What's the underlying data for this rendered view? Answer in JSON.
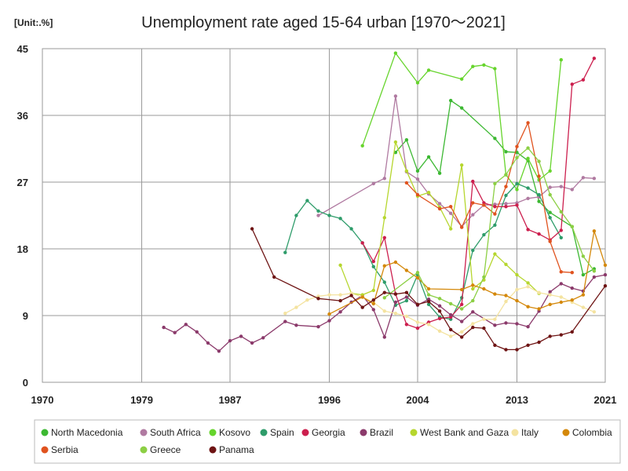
{
  "chart_data": {
    "type": "line",
    "title": "Unemployment rate aged 15-64 urban [1970〜2021]",
    "unit_label": "[Unit:.%]",
    "xlim": [
      1970,
      2021
    ],
    "ylim": [
      0,
      45
    ],
    "x_ticks": [
      1970,
      1979,
      1987,
      1996,
      2004,
      2013,
      2021
    ],
    "y_ticks": [
      0,
      9,
      18,
      27,
      36,
      45
    ],
    "grid": true,
    "legend_position": "bottom",
    "series": [
      {
        "name": "North Macedonia",
        "color": "#3cb832",
        "points": [
          [
            2002,
            31.0
          ],
          [
            2003,
            32.7
          ],
          [
            2004,
            28.5
          ],
          [
            2005,
            30.4
          ],
          [
            2006,
            28.2
          ],
          [
            2007,
            38.0
          ],
          [
            2008,
            37.0
          ],
          [
            2011,
            32.9
          ],
          [
            2012,
            31.1
          ],
          [
            2013,
            31.0
          ],
          [
            2014,
            29.9
          ],
          [
            2015,
            24.4
          ],
          [
            2016,
            22.9
          ],
          [
            2018,
            21.0
          ],
          [
            2019,
            14.5
          ],
          [
            2020,
            15.3
          ]
        ]
      },
      {
        "name": "South Africa",
        "color": "#b07aa1",
        "points": [
          [
            1995,
            22.5
          ],
          [
            2000,
            26.8
          ],
          [
            2001,
            27.5
          ],
          [
            2002,
            38.6
          ],
          [
            2003,
            28.4
          ],
          [
            2004,
            27.4
          ],
          [
            2005,
            25.4
          ],
          [
            2006,
            24.1
          ],
          [
            2007,
            22.8
          ],
          [
            2008,
            21.0
          ],
          [
            2009,
            22.6
          ],
          [
            2010,
            23.9
          ],
          [
            2011,
            24.0
          ],
          [
            2012,
            24.1
          ],
          [
            2013,
            24.2
          ],
          [
            2014,
            24.8
          ],
          [
            2015,
            25.0
          ],
          [
            2016,
            26.3
          ],
          [
            2017,
            26.4
          ],
          [
            2018,
            26.0
          ],
          [
            2019,
            27.6
          ],
          [
            2020,
            27.5
          ]
        ]
      },
      {
        "name": "Kosovo",
        "color": "#66d42c",
        "points": [
          [
            1999,
            31.9
          ],
          [
            2002,
            44.4
          ],
          [
            2004,
            40.4
          ],
          [
            2005,
            42.1
          ],
          [
            2008,
            40.9
          ],
          [
            2009,
            42.6
          ],
          [
            2010,
            42.8
          ],
          [
            2011,
            42.3
          ],
          [
            2012,
            28.0
          ],
          [
            2013,
            26.0
          ],
          [
            2014,
            30.2
          ],
          [
            2015,
            27.3
          ],
          [
            2016,
            28.5
          ],
          [
            2017,
            43.5
          ]
        ]
      },
      {
        "name": "Spain",
        "color": "#2e9c6a",
        "points": [
          [
            1992,
            17.5
          ],
          [
            1993,
            22.5
          ],
          [
            1994,
            24.5
          ],
          [
            1995,
            23.1
          ],
          [
            1996,
            22.5
          ],
          [
            1997,
            22.1
          ],
          [
            1998,
            20.7
          ],
          [
            1999,
            18.8
          ],
          [
            2000,
            15.6
          ],
          [
            2001,
            13.5
          ],
          [
            2002,
            10.4
          ],
          [
            2003,
            11.0
          ],
          [
            2004,
            14.5
          ],
          [
            2005,
            10.5
          ],
          [
            2006,
            8.8
          ],
          [
            2007,
            8.5
          ],
          [
            2008,
            11.4
          ],
          [
            2009,
            17.8
          ],
          [
            2010,
            19.9
          ],
          [
            2011,
            21.2
          ],
          [
            2012,
            25.2
          ],
          [
            2013,
            26.8
          ],
          [
            2014,
            26.2
          ],
          [
            2015,
            25.3
          ],
          [
            2016,
            22.2
          ],
          [
            2017,
            19.5
          ]
        ]
      },
      {
        "name": "Georgia",
        "color": "#cc1f4e",
        "points": [
          [
            1999,
            18.8
          ],
          [
            2000,
            16.3
          ],
          [
            2001,
            19.5
          ],
          [
            2002,
            11.9
          ],
          [
            2003,
            7.8
          ],
          [
            2004,
            7.3
          ],
          [
            2005,
            8.1
          ],
          [
            2006,
            8.6
          ],
          [
            2007,
            8.8
          ],
          [
            2008,
            10.5
          ],
          [
            2009,
            27.1
          ],
          [
            2010,
            24.2
          ],
          [
            2011,
            23.7
          ],
          [
            2012,
            23.7
          ],
          [
            2013,
            23.9
          ],
          [
            2014,
            20.6
          ],
          [
            2015,
            20.0
          ],
          [
            2016,
            19.2
          ],
          [
            2017,
            20.5
          ],
          [
            2018,
            40.2
          ],
          [
            2019,
            40.8
          ],
          [
            2020,
            43.7
          ]
        ]
      },
      {
        "name": "Brazil",
        "color": "#8b3a6b",
        "points": [
          [
            1981,
            7.4
          ],
          [
            1982,
            6.7
          ],
          [
            1983,
            7.8
          ],
          [
            1984,
            6.8
          ],
          [
            1985,
            5.3
          ],
          [
            1986,
            4.2
          ],
          [
            1987,
            5.6
          ],
          [
            1988,
            6.2
          ],
          [
            1989,
            5.3
          ],
          [
            1990,
            6.0
          ],
          [
            1992,
            8.2
          ],
          [
            1993,
            7.7
          ],
          [
            1995,
            7.5
          ],
          [
            1996,
            8.3
          ],
          [
            1997,
            9.5
          ],
          [
            1998,
            10.8
          ],
          [
            1999,
            11.7
          ],
          [
            2000,
            9.8
          ],
          [
            2001,
            6.1
          ],
          [
            2002,
            10.8
          ],
          [
            2003,
            11.5
          ],
          [
            2004,
            10.4
          ],
          [
            2005,
            11.2
          ],
          [
            2006,
            10.3
          ],
          [
            2007,
            9.1
          ],
          [
            2008,
            8.2
          ],
          [
            2009,
            9.5
          ],
          [
            2011,
            7.7
          ],
          [
            2012,
            8.0
          ],
          [
            2013,
            7.9
          ],
          [
            2014,
            7.5
          ],
          [
            2015,
            9.6
          ],
          [
            2016,
            12.2
          ],
          [
            2017,
            13.3
          ],
          [
            2018,
            12.7
          ],
          [
            2019,
            12.3
          ],
          [
            2020,
            14.2
          ],
          [
            2021,
            14.5
          ]
        ]
      },
      {
        "name": "West Bank and Gaza",
        "color": "#b6d62e",
        "points": [
          [
            1997,
            15.8
          ],
          [
            1998,
            12.0
          ],
          [
            1999,
            11.8
          ],
          [
            2000,
            12.4
          ],
          [
            2001,
            22.2
          ],
          [
            2002,
            32.4
          ],
          [
            2003,
            28.5
          ],
          [
            2004,
            25.1
          ],
          [
            2005,
            25.6
          ],
          [
            2006,
            23.6
          ],
          [
            2007,
            20.7
          ],
          [
            2008,
            29.3
          ],
          [
            2009,
            12.6
          ],
          [
            2010,
            13.8
          ],
          [
            2011,
            17.3
          ],
          [
            2012,
            15.9
          ],
          [
            2013,
            14.5
          ],
          [
            2014,
            13.4
          ],
          [
            2015,
            12.0
          ]
        ]
      },
      {
        "name": "Italy",
        "color": "#f4e3a0",
        "points": [
          [
            1992,
            9.3
          ],
          [
            1993,
            10.1
          ],
          [
            1994,
            11.1
          ],
          [
            1995,
            11.6
          ],
          [
            1996,
            11.8
          ],
          [
            1997,
            11.8
          ],
          [
            1998,
            12.0
          ],
          [
            1999,
            11.5
          ],
          [
            2000,
            10.8
          ],
          [
            2001,
            9.6
          ],
          [
            2002,
            9.3
          ],
          [
            2003,
            8.9
          ],
          [
            2004,
            8.1
          ],
          [
            2005,
            7.8
          ],
          [
            2006,
            6.9
          ],
          [
            2007,
            6.2
          ],
          [
            2008,
            6.8
          ],
          [
            2009,
            7.9
          ],
          [
            2010,
            8.5
          ],
          [
            2011,
            8.5
          ],
          [
            2012,
            10.9
          ],
          [
            2013,
            12.5
          ],
          [
            2014,
            12.9
          ],
          [
            2015,
            12.1
          ],
          [
            2016,
            11.8
          ],
          [
            2017,
            11.5
          ],
          [
            2018,
            10.8
          ],
          [
            2019,
            10.1
          ],
          [
            2020,
            9.5
          ]
        ]
      },
      {
        "name": "Colombia",
        "color": "#d4880a",
        "points": [
          [
            1996,
            9.2
          ],
          [
            1999,
            11.5
          ],
          [
            2000,
            10.6
          ],
          [
            2001,
            15.7
          ],
          [
            2002,
            16.2
          ],
          [
            2003,
            15.1
          ],
          [
            2004,
            14.1
          ],
          [
            2005,
            12.6
          ],
          [
            2008,
            12.5
          ],
          [
            2009,
            13.1
          ],
          [
            2010,
            12.6
          ],
          [
            2011,
            11.9
          ],
          [
            2012,
            11.7
          ],
          [
            2013,
            11.0
          ],
          [
            2014,
            10.2
          ],
          [
            2015,
            9.9
          ],
          [
            2016,
            10.5
          ],
          [
            2017,
            10.8
          ],
          [
            2018,
            11.1
          ],
          [
            2019,
            11.8
          ],
          [
            2020,
            20.4
          ],
          [
            2021,
            15.8
          ]
        ]
      },
      {
        "name": "Serbia",
        "color": "#e0531f",
        "points": [
          [
            2003,
            26.9
          ],
          [
            2004,
            25.3
          ],
          [
            2006,
            23.4
          ],
          [
            2007,
            23.7
          ],
          [
            2008,
            20.9
          ],
          [
            2009,
            24.2
          ],
          [
            2010,
            23.9
          ],
          [
            2011,
            22.7
          ],
          [
            2012,
            26.4
          ],
          [
            2013,
            31.8
          ],
          [
            2014,
            35.0
          ],
          [
            2015,
            27.8
          ],
          [
            2016,
            19.0
          ],
          [
            2017,
            14.9
          ],
          [
            2018,
            14.8
          ]
        ]
      },
      {
        "name": "Greece",
        "color": "#8ccf44",
        "points": [
          [
            2001,
            11.4
          ],
          [
            2004,
            14.8
          ],
          [
            2005,
            11.8
          ],
          [
            2006,
            11.3
          ],
          [
            2007,
            10.6
          ],
          [
            2008,
            9.9
          ],
          [
            2009,
            11.0
          ],
          [
            2010,
            14.2
          ],
          [
            2011,
            26.8
          ],
          [
            2012,
            28.0
          ],
          [
            2013,
            30.3
          ],
          [
            2014,
            31.6
          ],
          [
            2015,
            29.8
          ],
          [
            2016,
            25.3
          ],
          [
            2017,
            23.0
          ],
          [
            2018,
            21.0
          ],
          [
            2019,
            17.0
          ],
          [
            2020,
            15.0
          ]
        ]
      },
      {
        "name": "Panama",
        "color": "#6e1414",
        "points": [
          [
            1989,
            20.7
          ],
          [
            1991,
            14.2
          ],
          [
            1995,
            11.3
          ],
          [
            1997,
            11.0
          ],
          [
            1998,
            11.7
          ],
          [
            1999,
            10.1
          ],
          [
            2000,
            11.1
          ],
          [
            2001,
            12.1
          ],
          [
            2002,
            11.9
          ],
          [
            2003,
            12.1
          ],
          [
            2004,
            10.5
          ],
          [
            2005,
            10.9
          ],
          [
            2006,
            9.6
          ],
          [
            2007,
            7.1
          ],
          [
            2008,
            6.1
          ],
          [
            2009,
            7.4
          ],
          [
            2010,
            7.3
          ],
          [
            2011,
            5.0
          ],
          [
            2012,
            4.4
          ],
          [
            2013,
            4.4
          ],
          [
            2014,
            5.0
          ],
          [
            2015,
            5.4
          ],
          [
            2016,
            6.2
          ],
          [
            2017,
            6.4
          ],
          [
            2018,
            6.8
          ],
          [
            2021,
            13.0
          ]
        ]
      }
    ]
  }
}
